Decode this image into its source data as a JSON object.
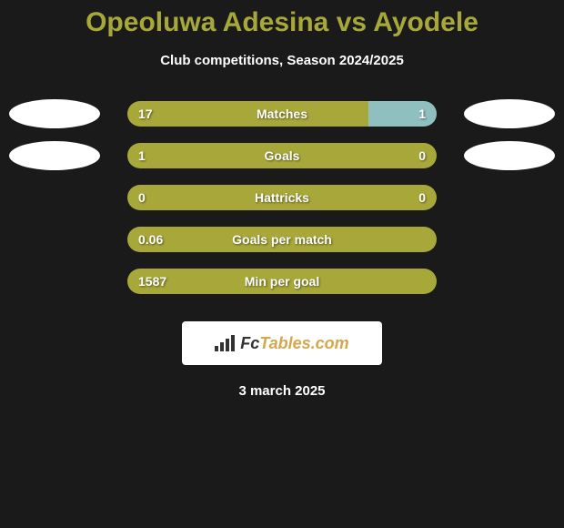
{
  "title": "Opeoluwa Adesina vs Ayodele",
  "subtitle": "Club competitions, Season 2024/2025",
  "date": "3 march 2025",
  "colors": {
    "background": "#1a1a1a",
    "title": "#a8a83a",
    "text": "#ffffff",
    "barLeft": "#a8a83a",
    "barRight": "#8fbfbf",
    "ellipse": "#ffffff",
    "logoBackground": "#ffffff",
    "logoDark": "#333333",
    "logoAccent": "#d4a84a"
  },
  "logo": {
    "part1": "Fc",
    "part2": "Tables.com"
  },
  "stats": [
    {
      "label": "Matches",
      "leftValue": "17",
      "rightValue": "1",
      "leftPercent": 78,
      "rightPercent": 22,
      "showEllipses": true
    },
    {
      "label": "Goals",
      "leftValue": "1",
      "rightValue": "0",
      "leftPercent": 100,
      "rightPercent": 0,
      "showEllipses": true
    },
    {
      "label": "Hattricks",
      "leftValue": "0",
      "rightValue": "0",
      "leftPercent": 100,
      "rightPercent": 0,
      "showEllipses": false
    },
    {
      "label": "Goals per match",
      "leftValue": "0.06",
      "rightValue": "",
      "leftPercent": 100,
      "rightPercent": 0,
      "showEllipses": false
    },
    {
      "label": "Min per goal",
      "leftValue": "1587",
      "rightValue": "",
      "leftPercent": 100,
      "rightPercent": 0,
      "showEllipses": false
    }
  ]
}
